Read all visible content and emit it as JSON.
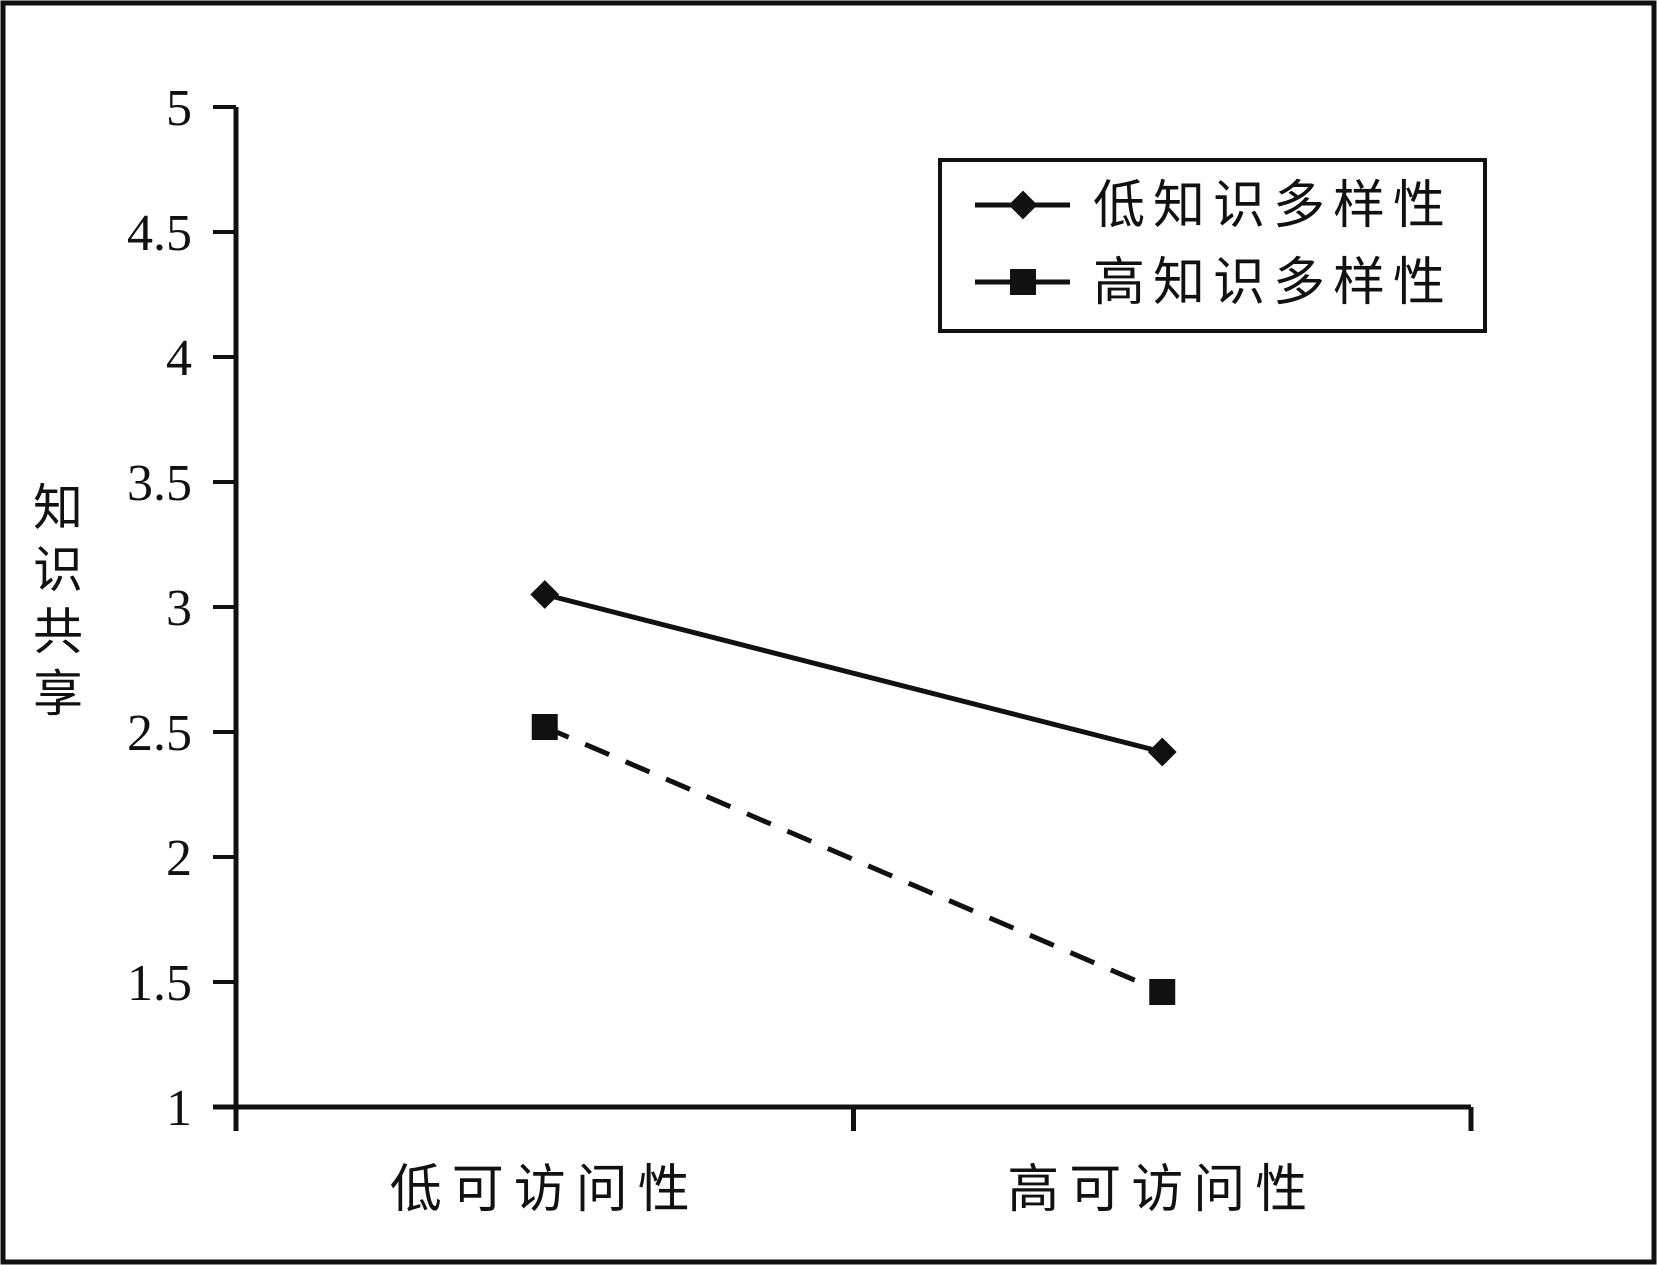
{
  "chart_data": {
    "type": "line",
    "categories": [
      "低可访问性",
      "高可访问性"
    ],
    "ylabel": "知识共享",
    "xlabel": "",
    "ylim": [
      1,
      5
    ],
    "yticks": [
      "1",
      "1.5",
      "2",
      "2.5",
      "3",
      "3.5",
      "4",
      "4.5",
      "5"
    ],
    "grid": false,
    "legend_position": "top-right",
    "series": [
      {
        "name": "低知识多样性",
        "values": [
          3.05,
          2.42
        ],
        "marker": "diamond",
        "line": "solid",
        "color": "#111111"
      },
      {
        "name": "高知识多样性",
        "values": [
          2.52,
          1.46
        ],
        "marker": "square",
        "line": "dashed",
        "color": "#111111"
      }
    ]
  }
}
